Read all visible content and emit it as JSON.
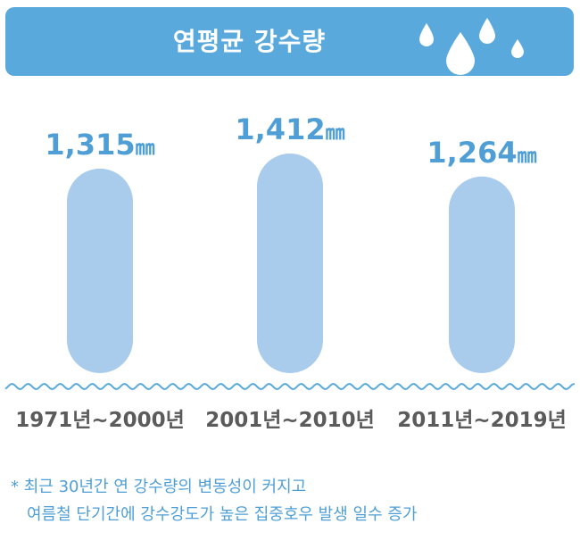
{
  "header": {
    "title": "연평균 강수량",
    "icon": "water-drops-icon",
    "colors": {
      "banner": "#5aa9dd",
      "text": "#ffffff"
    }
  },
  "chart_data": {
    "type": "bar",
    "title": "연평균 강수량",
    "unit": "㎜",
    "categories": [
      "1971년~2000년",
      "2001년~2010년",
      "2011년~2019년"
    ],
    "values": [
      1315,
      1412,
      1264
    ],
    "value_labels": [
      "1,315",
      "1,412",
      "1,264"
    ],
    "colors": {
      "bar": "#a9ccec",
      "value": "#4f9fd6",
      "category": "#5b5b5b",
      "wave": "#5aa9dd"
    }
  },
  "note": {
    "asterisk": "*",
    "line1": "최근 30년간 연 강수량의 변동성이 커지고",
    "line2": "여름철 단기간에 강수강도가 높은 집중호우 발생 일수 증가"
  }
}
